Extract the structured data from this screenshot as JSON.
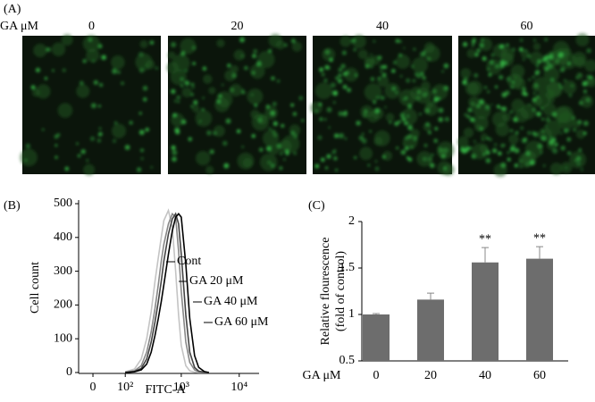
{
  "panel_a": {
    "label": "(A)",
    "row_label": "GA μM",
    "columns": [
      "0",
      "20",
      "40",
      "60"
    ]
  },
  "chart_data": [
    {
      "type": "line",
      "label": "(B)",
      "x_label": "FITC-A",
      "y_label": "Cell count",
      "xscale": "biexponential",
      "x": [
        100,
        150,
        200,
        250,
        300,
        350,
        400,
        450,
        500,
        600,
        700,
        800,
        900,
        1000,
        1200,
        1400,
        1700,
        2000,
        2500,
        3000
      ],
      "series": [
        {
          "name": "Cont",
          "color": "#000000",
          "values": [
            0,
            2,
            8,
            25,
            60,
            110,
            160,
            210,
            260,
            350,
            420,
            460,
            470,
            460,
            320,
            160,
            50,
            15,
            3,
            0
          ]
        },
        {
          "name": "GA 20 μM",
          "color": "#444444",
          "values": [
            0,
            3,
            12,
            40,
            90,
            150,
            210,
            270,
            330,
            410,
            455,
            470,
            440,
            350,
            170,
            60,
            15,
            4,
            1,
            0
          ]
        },
        {
          "name": "GA 40 μM",
          "color": "#888888",
          "values": [
            1,
            5,
            20,
            60,
            120,
            190,
            260,
            330,
            380,
            440,
            470,
            460,
            360,
            240,
            90,
            30,
            8,
            2,
            0,
            0
          ]
        },
        {
          "name": "GA 60 μM",
          "color": "#c4c4c4",
          "values": [
            2,
            10,
            40,
            100,
            180,
            270,
            340,
            400,
            450,
            480,
            430,
            300,
            170,
            80,
            20,
            5,
            1,
            0,
            0,
            0
          ]
        }
      ],
      "xlim": [
        -36,
        22000
      ],
      "xticks": [
        0,
        {
          "value": 100,
          "label": "10²"
        },
        {
          "value": 1000,
          "label": "10³"
        },
        {
          "value": 10000,
          "label": "10⁴"
        }
      ],
      "ylim": [
        0,
        500
      ],
      "yticks": [
        0,
        100,
        200,
        300,
        400,
        500
      ]
    },
    {
      "type": "bar",
      "label": "(C)",
      "x_label": "GA μM",
      "y_label": [
        "Relative flourescence",
        "(fold of control)"
      ],
      "categories": [
        "0",
        "20",
        "40",
        "60"
      ],
      "values": [
        1,
        1.16,
        1.56,
        1.6
      ],
      "errors": [
        0.01,
        0.07,
        0.16,
        0.13
      ],
      "significance": [
        null,
        null,
        "**",
        "**"
      ],
      "color": "#6d6d6d",
      "ylim": [
        0.5,
        2
      ],
      "yticks": [
        0.5,
        1,
        1.5,
        2
      ]
    }
  ]
}
